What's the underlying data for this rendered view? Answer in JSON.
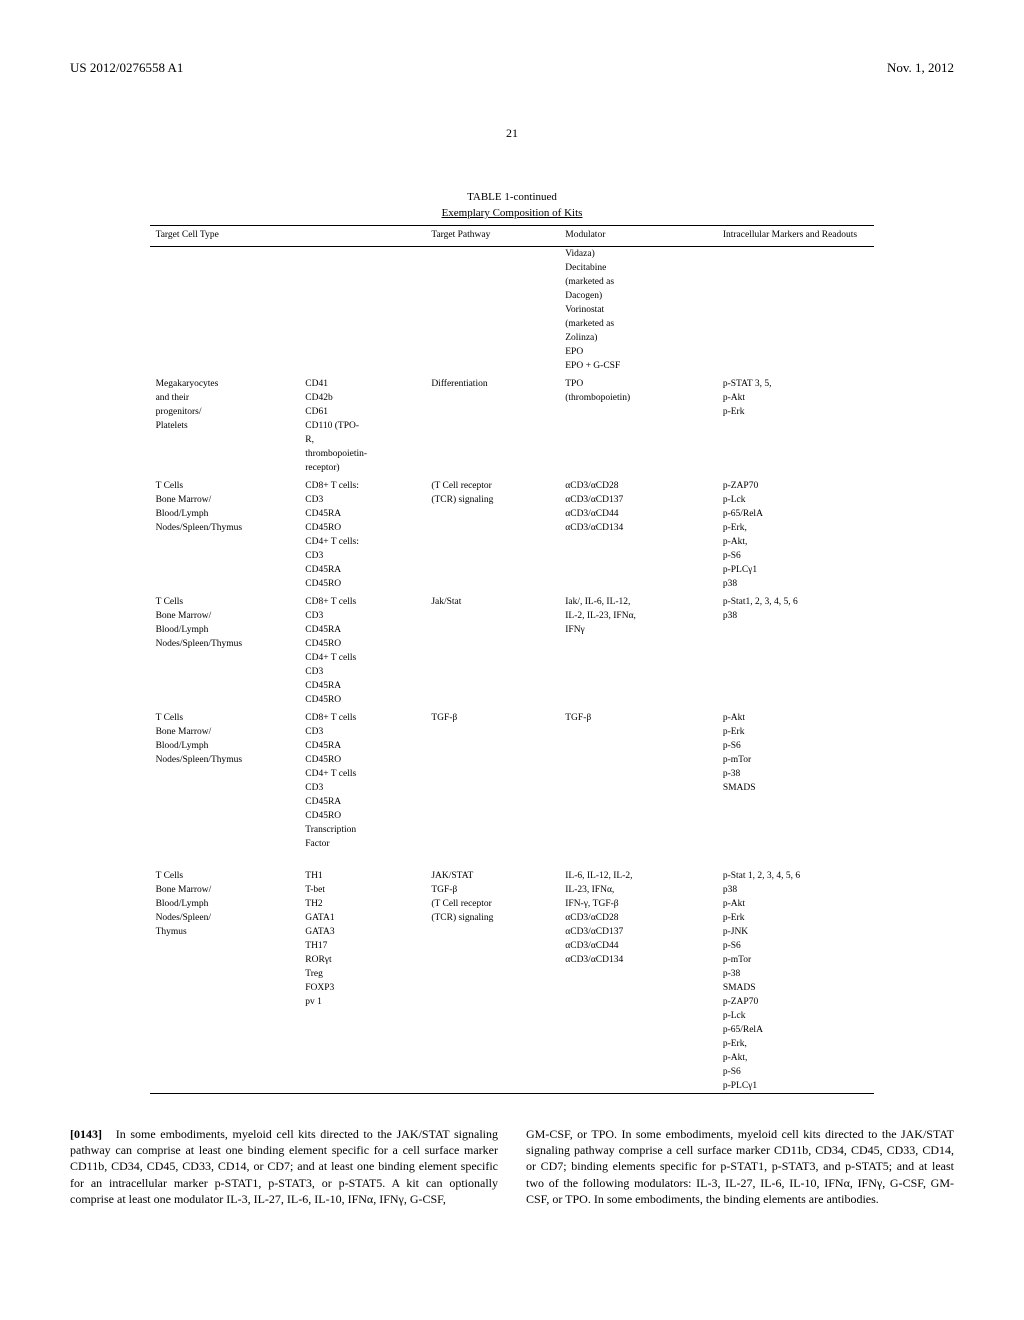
{
  "header": {
    "pub_number": "US 2012/0276558 A1",
    "date": "Nov. 1, 2012",
    "page": "21"
  },
  "table": {
    "title": "TABLE 1-continued",
    "subtitle": "Exemplary Composition of Kits",
    "columns": [
      "Target Cell Type",
      "",
      "Target Pathway",
      "Modulator",
      "Intracellular Markers and Readouts"
    ],
    "rows": [
      {
        "c1": "",
        "c2": "",
        "c3": "",
        "c4": "Vidaza)",
        "c5": ""
      },
      {
        "c1": "",
        "c2": "",
        "c3": "",
        "c4": "Decitabine",
        "c5": ""
      },
      {
        "c1": "",
        "c2": "",
        "c3": "",
        "c4": "(marketed as",
        "c5": ""
      },
      {
        "c1": "",
        "c2": "",
        "c3": "",
        "c4": "Dacogen)",
        "c5": ""
      },
      {
        "c1": "",
        "c2": "",
        "c3": "",
        "c4": "Vorinostat",
        "c5": ""
      },
      {
        "c1": "",
        "c2": "",
        "c3": "",
        "c4": "(marketed as",
        "c5": ""
      },
      {
        "c1": "",
        "c2": "",
        "c3": "",
        "c4": "Zolinza)",
        "c5": ""
      },
      {
        "c1": "",
        "c2": "",
        "c3": "",
        "c4": "EPO",
        "c5": ""
      },
      {
        "c1": "",
        "c2": "",
        "c3": "",
        "c4": "EPO + G-CSF",
        "c5": ""
      },
      {
        "c1": "Megakaryocytes",
        "c2": "CD41",
        "c3": "Differentiation",
        "c4": "TPO",
        "c5": "p-STAT 3, 5,",
        "section": true
      },
      {
        "c1": "and their",
        "c2": "CD42b",
        "c3": "",
        "c4": "(thrombopoietin)",
        "c5": "p-Akt"
      },
      {
        "c1": "progenitors/",
        "c2": "CD61",
        "c3": "",
        "c4": "",
        "c5": "p-Erk"
      },
      {
        "c1": "Platelets",
        "c2": "CD110 (TPO-",
        "c3": "",
        "c4": "",
        "c5": ""
      },
      {
        "c1": "",
        "c2": "R,",
        "c3": "",
        "c4": "",
        "c5": ""
      },
      {
        "c1": "",
        "c2": "thrombopoietin-",
        "c3": "",
        "c4": "",
        "c5": ""
      },
      {
        "c1": "",
        "c2": "receptor)",
        "c3": "",
        "c4": "",
        "c5": ""
      },
      {
        "c1": "T Cells",
        "c2": "CD8+ T cells:",
        "c3": "(T Cell receptor",
        "c4": "αCD3/αCD28",
        "c5": "p-ZAP70",
        "section": true
      },
      {
        "c1": "Bone Marrow/",
        "c2": "CD3",
        "c3": "(TCR) signaling",
        "c4": "αCD3/αCD137",
        "c5": "p-Lck"
      },
      {
        "c1": "Blood/Lymph",
        "c2": "CD45RA",
        "c3": "",
        "c4": "αCD3/αCD44",
        "c5": "p-65/RelA"
      },
      {
        "c1": "Nodes/Spleen/Thymus",
        "c2": "CD45RO",
        "c3": "",
        "c4": "αCD3/αCD134",
        "c5": "p-Erk,"
      },
      {
        "c1": "",
        "c2": "CD4+ T cells:",
        "c3": "",
        "c4": "",
        "c5": "p-Akt,"
      },
      {
        "c1": "",
        "c2": "CD3",
        "c3": "",
        "c4": "",
        "c5": "p-S6"
      },
      {
        "c1": "",
        "c2": "CD45RA",
        "c3": "",
        "c4": "",
        "c5": "p-PLCγ1"
      },
      {
        "c1": "",
        "c2": "CD45RO",
        "c3": "",
        "c4": "",
        "c5": "p38"
      },
      {
        "c1": "T Cells",
        "c2": "CD8+ T cells",
        "c3": "Jak/Stat",
        "c4": "Iak/, IL-6, IL-12,",
        "c5": "p-Stat1, 2, 3, 4, 5, 6",
        "section": true
      },
      {
        "c1": "Bone Marrow/",
        "c2": "CD3",
        "c3": "",
        "c4": "IL-2, IL-23, IFNα,",
        "c5": "p38"
      },
      {
        "c1": "Blood/Lymph",
        "c2": "CD45RA",
        "c3": "",
        "c4": "IFNγ",
        "c5": ""
      },
      {
        "c1": "Nodes/Spleen/Thymus",
        "c2": "CD45RO",
        "c3": "",
        "c4": "",
        "c5": ""
      },
      {
        "c1": "",
        "c2": "CD4+ T cells",
        "c3": "",
        "c4": "",
        "c5": ""
      },
      {
        "c1": "",
        "c2": "CD3",
        "c3": "",
        "c4": "",
        "c5": ""
      },
      {
        "c1": "",
        "c2": "CD45RA",
        "c3": "",
        "c4": "",
        "c5": ""
      },
      {
        "c1": "",
        "c2": "CD45RO",
        "c3": "",
        "c4": "",
        "c5": ""
      },
      {
        "c1": "T Cells",
        "c2": "CD8+ T cells",
        "c3": "TGF-β",
        "c4": "TGF-β",
        "c5": "p-Akt",
        "section": true
      },
      {
        "c1": "Bone Marrow/",
        "c2": "CD3",
        "c3": "",
        "c4": "",
        "c5": "p-Erk"
      },
      {
        "c1": "Blood/Lymph",
        "c2": "CD45RA",
        "c3": "",
        "c4": "",
        "c5": "p-S6"
      },
      {
        "c1": "Nodes/Spleen/Thymus",
        "c2": "CD45RO",
        "c3": "",
        "c4": "",
        "c5": "p-mTor"
      },
      {
        "c1": "",
        "c2": "CD4+ T cells",
        "c3": "",
        "c4": "",
        "c5": "p-38"
      },
      {
        "c1": "",
        "c2": "CD3",
        "c3": "",
        "c4": "",
        "c5": "SMADS"
      },
      {
        "c1": "",
        "c2": "CD45RA",
        "c3": "",
        "c4": "",
        "c5": ""
      },
      {
        "c1": "",
        "c2": "CD45RO",
        "c3": "",
        "c4": "",
        "c5": ""
      },
      {
        "c1": "",
        "c2": "Transcription",
        "c3": "",
        "c4": "",
        "c5": ""
      },
      {
        "c1": "",
        "c2": "Factor",
        "c3": "",
        "c4": "",
        "c5": ""
      },
      {
        "c1": "T Cells",
        "c2": "TH1",
        "c3": "JAK/STAT",
        "c4": "IL-6, IL-12, IL-2,",
        "c5": "p-Stat 1, 2, 3, 4, 5, 6",
        "section": true,
        "gap": true
      },
      {
        "c1": "Bone Marrow/",
        "c2": "T-bet",
        "c3": "TGF-β",
        "c4": "IL-23, IFNα,",
        "c5": "p38"
      },
      {
        "c1": "Blood/Lymph",
        "c2": "TH2",
        "c3": "(T Cell receptor",
        "c4": "IFN-γ, TGF-β",
        "c5": "p-Akt"
      },
      {
        "c1": "Nodes/Spleen/",
        "c2": "GATA1",
        "c3": "(TCR) signaling",
        "c4": "αCD3/αCD28",
        "c5": "p-Erk"
      },
      {
        "c1": "Thymus",
        "c2": "GATA3",
        "c3": "",
        "c4": "αCD3/αCD137",
        "c5": "p-JNK"
      },
      {
        "c1": "",
        "c2": "TH17",
        "c3": "",
        "c4": "αCD3/αCD44",
        "c5": "p-S6"
      },
      {
        "c1": "",
        "c2": "RORγt",
        "c3": "",
        "c4": "αCD3/αCD134",
        "c5": "p-mTor"
      },
      {
        "c1": "",
        "c2": "Treg",
        "c3": "",
        "c4": "",
        "c5": "p-38"
      },
      {
        "c1": "",
        "c2": "FOXP3",
        "c3": "",
        "c4": "",
        "c5": "SMADS"
      },
      {
        "c1": "",
        "c2": "pv 1",
        "c3": "",
        "c4": "",
        "c5": "p-ZAP70"
      },
      {
        "c1": "",
        "c2": "",
        "c3": "",
        "c4": "",
        "c5": "p-Lck"
      },
      {
        "c1": "",
        "c2": "",
        "c3": "",
        "c4": "",
        "c5": "p-65/RelA"
      },
      {
        "c1": "",
        "c2": "",
        "c3": "",
        "c4": "",
        "c5": "p-Erk,"
      },
      {
        "c1": "",
        "c2": "",
        "c3": "",
        "c4": "",
        "c5": "p-Akt,"
      },
      {
        "c1": "",
        "c2": "",
        "c3": "",
        "c4": "",
        "c5": "p-S6"
      },
      {
        "c1": "",
        "c2": "",
        "c3": "",
        "c4": "",
        "c5": "p-PLCγ1"
      }
    ]
  },
  "paragraph": {
    "num": "[0143]",
    "left": "In some embodiments, myeloid cell kits directed to the JAK/STAT signaling pathway can comprise at least one binding element specific for a cell surface marker CD11b, CD34, CD45, CD33, CD14, or CD7; and at least one binding element specific for an intracellular marker p-STAT1, p-STAT3, or p-STAT5. A kit can optionally comprise at least one modulator IL-3, IL-27, IL-6, IL-10, IFNα, IFNγ, G-CSF,",
    "right": "GM-CSF, or TPO. In some embodiments, myeloid cell kits directed to the JAK/STAT signaling pathway comprise a cell surface marker CD11b, CD34, CD45, CD33, CD14, or CD7; binding elements specific for p-STAT1, p-STAT3, and p-STAT5; and at least two of the following modulators: IL-3, IL-27, IL-6, IL-10, IFNα, IFNγ, G-CSF, GM-CSF, or TPO. In some embodiments, the binding elements are antibodies."
  }
}
